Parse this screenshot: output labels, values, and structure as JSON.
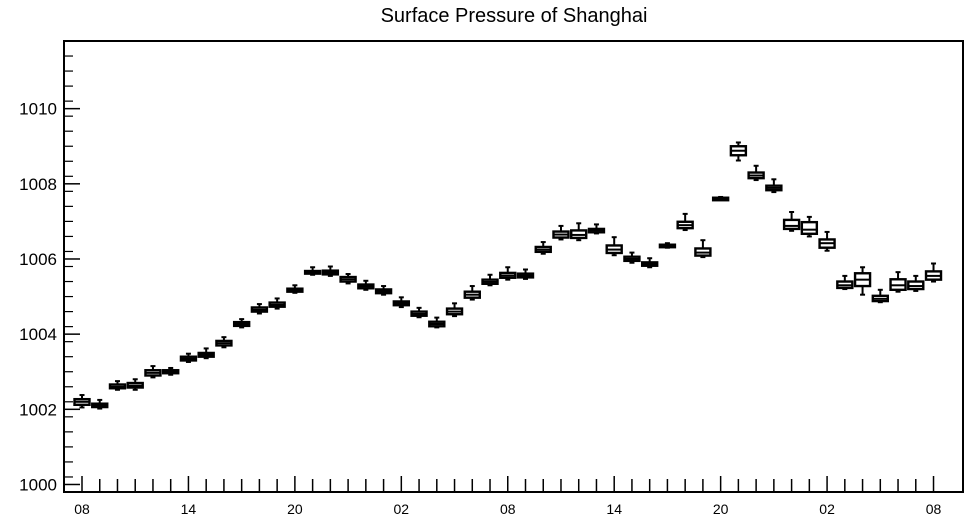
{
  "chart_data": {
    "type": "box",
    "title": "Surface Pressure of Shanghai",
    "xlabel": "",
    "ylabel": "",
    "ylim": [
      999.8,
      1011.8
    ],
    "yticks": [
      1000,
      1002,
      1004,
      1006,
      1008,
      1010
    ],
    "x_tick_labels": [
      "08",
      "14",
      "20",
      "02",
      "08",
      "14",
      "20",
      "02",
      "08"
    ],
    "grid": false,
    "boxes": [
      {
        "x": 0,
        "min": 1002.05,
        "q1": 1002.12,
        "median": 1002.2,
        "q3": 1002.27,
        "max": 1002.38
      },
      {
        "x": 1,
        "min": 1002.02,
        "q1": 1002.06,
        "median": 1002.11,
        "q3": 1002.15,
        "max": 1002.25
      },
      {
        "x": 2,
        "min": 1002.52,
        "q1": 1002.56,
        "median": 1002.6,
        "q3": 1002.66,
        "max": 1002.75
      },
      {
        "x": 3,
        "min": 1002.52,
        "q1": 1002.58,
        "median": 1002.63,
        "q3": 1002.7,
        "max": 1002.8
      },
      {
        "x": 4,
        "min": 1002.85,
        "q1": 1002.9,
        "median": 1002.97,
        "q3": 1003.04,
        "max": 1003.15
      },
      {
        "x": 5,
        "min": 1002.92,
        "q1": 1002.96,
        "median": 1003.0,
        "q3": 1003.04,
        "max": 1003.1
      },
      {
        "x": 6,
        "min": 1003.26,
        "q1": 1003.3,
        "median": 1003.35,
        "q3": 1003.4,
        "max": 1003.48
      },
      {
        "x": 7,
        "min": 1003.36,
        "q1": 1003.4,
        "median": 1003.45,
        "q3": 1003.5,
        "max": 1003.62
      },
      {
        "x": 8,
        "min": 1003.65,
        "q1": 1003.7,
        "median": 1003.76,
        "q3": 1003.82,
        "max": 1003.92
      },
      {
        "x": 9,
        "min": 1004.18,
        "q1": 1004.22,
        "median": 1004.27,
        "q3": 1004.32,
        "max": 1004.4
      },
      {
        "x": 10,
        "min": 1004.55,
        "q1": 1004.6,
        "median": 1004.65,
        "q3": 1004.71,
        "max": 1004.8
      },
      {
        "x": 11,
        "min": 1004.68,
        "q1": 1004.73,
        "median": 1004.78,
        "q3": 1004.84,
        "max": 1004.95
      },
      {
        "x": 12,
        "min": 1005.1,
        "q1": 1005.13,
        "median": 1005.17,
        "q3": 1005.21,
        "max": 1005.3
      },
      {
        "x": 13,
        "min": 1005.58,
        "q1": 1005.61,
        "median": 1005.65,
        "q3": 1005.68,
        "max": 1005.78
      },
      {
        "x": 14,
        "min": 1005.55,
        "q1": 1005.59,
        "median": 1005.64,
        "q3": 1005.69,
        "max": 1005.8
      },
      {
        "x": 15,
        "min": 1005.35,
        "q1": 1005.4,
        "median": 1005.46,
        "q3": 1005.52,
        "max": 1005.6
      },
      {
        "x": 16,
        "min": 1005.18,
        "q1": 1005.22,
        "median": 1005.27,
        "q3": 1005.32,
        "max": 1005.42
      },
      {
        "x": 17,
        "min": 1005.05,
        "q1": 1005.09,
        "median": 1005.14,
        "q3": 1005.19,
        "max": 1005.28
      },
      {
        "x": 18,
        "min": 1004.72,
        "q1": 1004.77,
        "median": 1004.82,
        "q3": 1004.87,
        "max": 1004.98
      },
      {
        "x": 19,
        "min": 1004.45,
        "q1": 1004.49,
        "median": 1004.54,
        "q3": 1004.6,
        "max": 1004.7
      },
      {
        "x": 20,
        "min": 1004.18,
        "q1": 1004.21,
        "median": 1004.27,
        "q3": 1004.33,
        "max": 1004.44
      },
      {
        "x": 21,
        "min": 1004.48,
        "q1": 1004.53,
        "median": 1004.6,
        "q3": 1004.68,
        "max": 1004.82
      },
      {
        "x": 22,
        "min": 1004.92,
        "q1": 1004.97,
        "median": 1005.05,
        "q3": 1005.13,
        "max": 1005.28
      },
      {
        "x": 23,
        "min": 1005.3,
        "q1": 1005.34,
        "median": 1005.39,
        "q3": 1005.45,
        "max": 1005.58
      },
      {
        "x": 24,
        "min": 1005.45,
        "q1": 1005.5,
        "median": 1005.56,
        "q3": 1005.63,
        "max": 1005.78
      },
      {
        "x": 25,
        "min": 1005.47,
        "q1": 1005.51,
        "median": 1005.56,
        "q3": 1005.61,
        "max": 1005.72
      },
      {
        "x": 26,
        "min": 1006.14,
        "q1": 1006.19,
        "median": 1006.25,
        "q3": 1006.32,
        "max": 1006.45
      },
      {
        "x": 27,
        "min": 1006.52,
        "q1": 1006.57,
        "median": 1006.65,
        "q3": 1006.73,
        "max": 1006.88
      },
      {
        "x": 28,
        "min": 1006.5,
        "q1": 1006.56,
        "median": 1006.64,
        "q3": 1006.76,
        "max": 1006.95
      },
      {
        "x": 29,
        "min": 1006.68,
        "q1": 1006.71,
        "median": 1006.76,
        "q3": 1006.8,
        "max": 1006.92
      },
      {
        "x": 30,
        "min": 1006.1,
        "q1": 1006.16,
        "median": 1006.25,
        "q3": 1006.36,
        "max": 1006.58
      },
      {
        "x": 31,
        "min": 1005.9,
        "q1": 1005.95,
        "median": 1006.0,
        "q3": 1006.06,
        "max": 1006.17
      },
      {
        "x": 32,
        "min": 1005.78,
        "q1": 1005.82,
        "median": 1005.86,
        "q3": 1005.91,
        "max": 1006.02
      },
      {
        "x": 33,
        "min": 1006.3,
        "q1": 1006.32,
        "median": 1006.35,
        "q3": 1006.38,
        "max": 1006.42
      },
      {
        "x": 34,
        "min": 1006.77,
        "q1": 1006.82,
        "median": 1006.9,
        "q3": 1006.99,
        "max": 1007.2
      },
      {
        "x": 35,
        "min": 1006.05,
        "q1": 1006.09,
        "median": 1006.17,
        "q3": 1006.28,
        "max": 1006.5
      },
      {
        "x": 36,
        "min": 1007.58,
        "q1": 1007.59,
        "median": 1007.61,
        "q3": 1007.63,
        "max": 1007.65
      },
      {
        "x": 37,
        "min": 1008.62,
        "q1": 1008.76,
        "median": 1008.88,
        "q3": 1009.0,
        "max": 1009.1
      },
      {
        "x": 38,
        "min": 1008.1,
        "q1": 1008.15,
        "median": 1008.22,
        "q3": 1008.3,
        "max": 1008.48
      },
      {
        "x": 39,
        "min": 1007.78,
        "q1": 1007.83,
        "median": 1007.89,
        "q3": 1007.95,
        "max": 1008.12
      },
      {
        "x": 40,
        "min": 1006.75,
        "q1": 1006.8,
        "median": 1006.88,
        "q3": 1007.04,
        "max": 1007.25
      },
      {
        "x": 41,
        "min": 1006.6,
        "q1": 1006.67,
        "median": 1006.78,
        "q3": 1006.98,
        "max": 1007.12
      },
      {
        "x": 42,
        "min": 1006.22,
        "q1": 1006.3,
        "median": 1006.42,
        "q3": 1006.52,
        "max": 1006.72
      },
      {
        "x": 43,
        "min": 1005.2,
        "q1": 1005.23,
        "median": 1005.3,
        "q3": 1005.4,
        "max": 1005.55
      },
      {
        "x": 44,
        "min": 1005.05,
        "q1": 1005.28,
        "median": 1005.45,
        "q3": 1005.62,
        "max": 1005.78
      },
      {
        "x": 45,
        "min": 1004.85,
        "q1": 1004.88,
        "median": 1004.94,
        "q3": 1005.02,
        "max": 1005.18
      },
      {
        "x": 46,
        "min": 1005.13,
        "q1": 1005.18,
        "median": 1005.3,
        "q3": 1005.46,
        "max": 1005.65
      },
      {
        "x": 47,
        "min": 1005.15,
        "q1": 1005.2,
        "median": 1005.28,
        "q3": 1005.4,
        "max": 1005.55
      },
      {
        "x": 48,
        "min": 1005.4,
        "q1": 1005.45,
        "median": 1005.55,
        "q3": 1005.67,
        "max": 1005.88
      }
    ]
  }
}
